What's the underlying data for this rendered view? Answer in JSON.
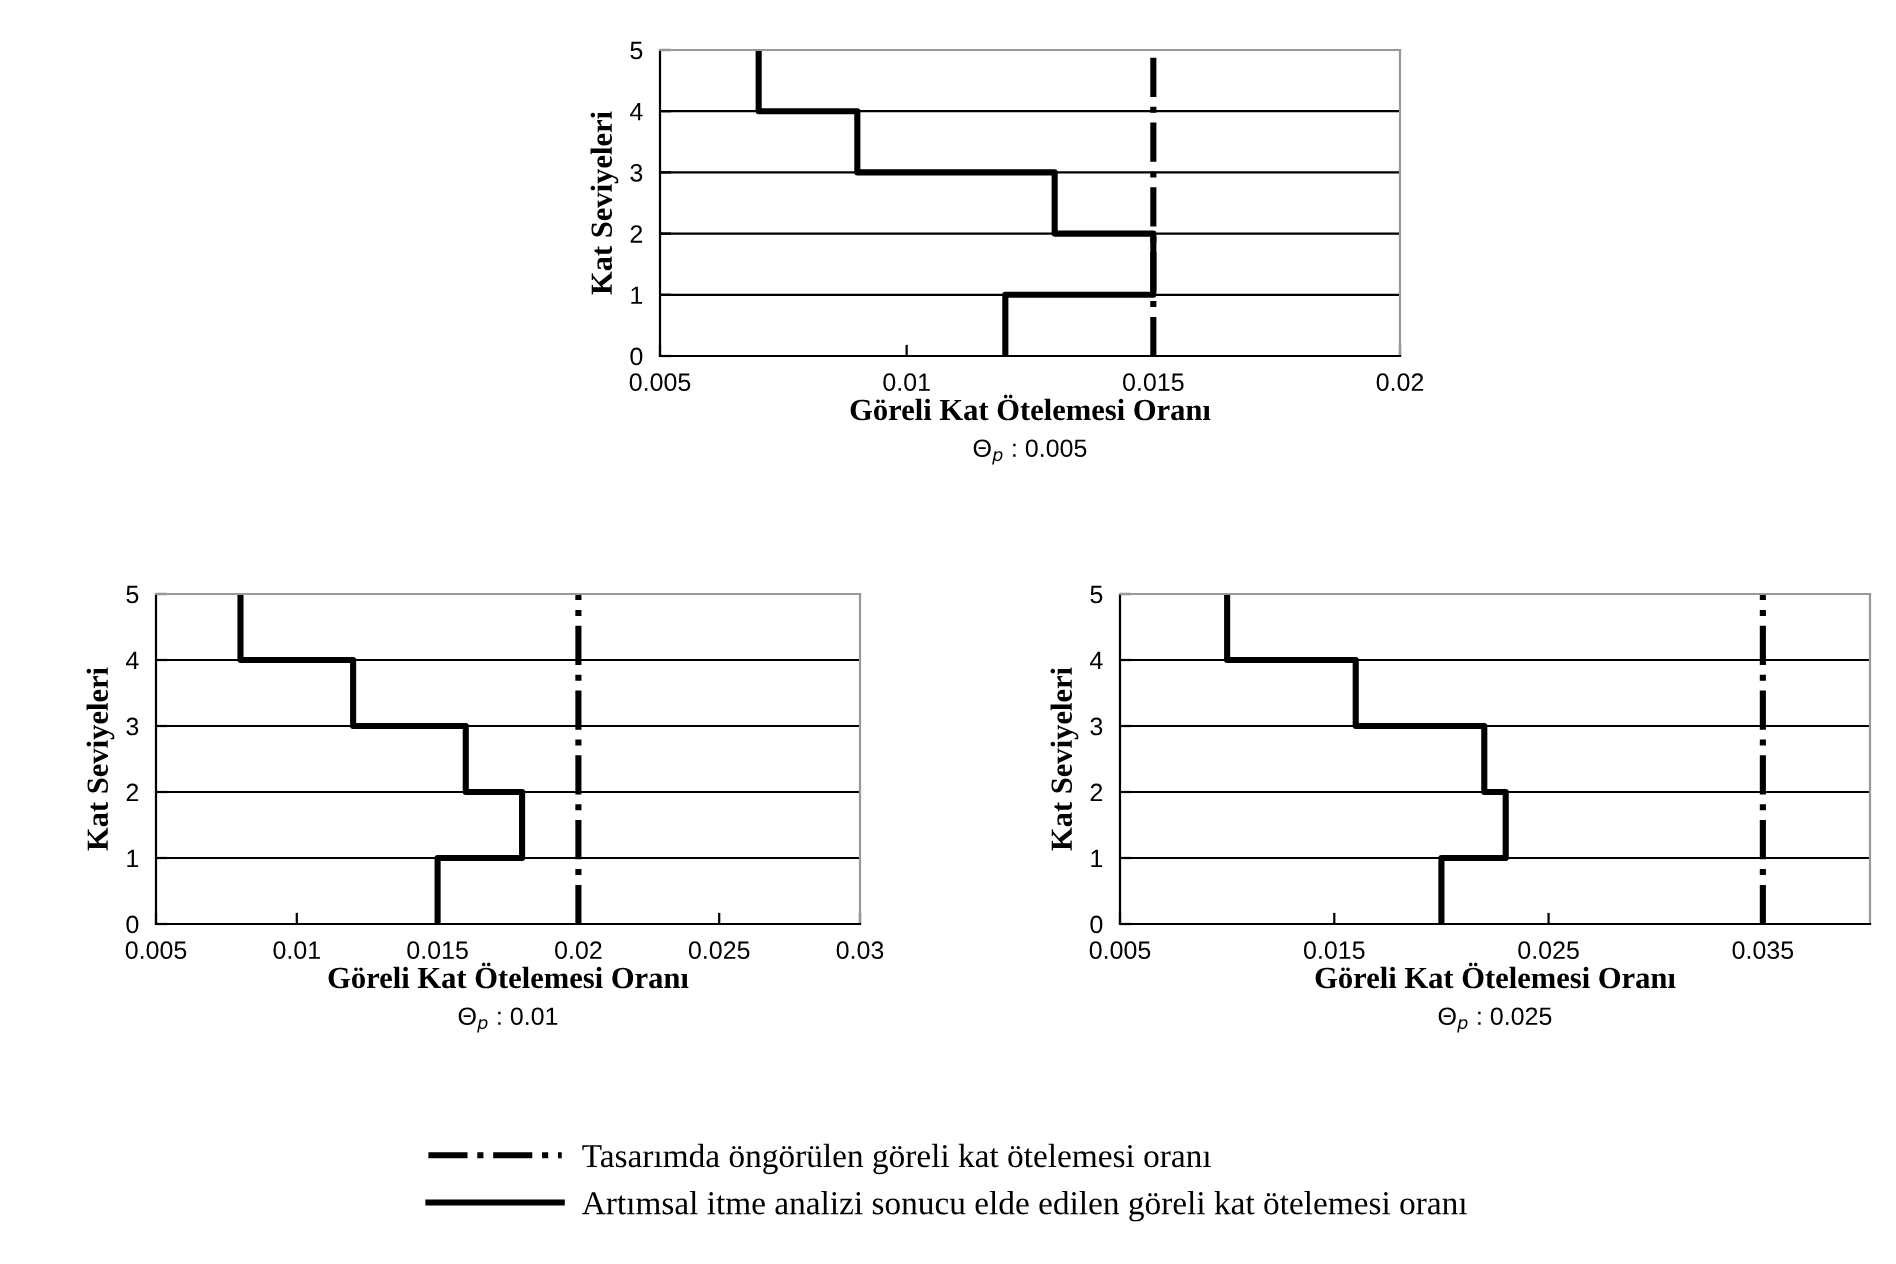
{
  "chart_data": [
    {
      "type": "line",
      "xlabel": "Göreli Kat Ötelemesi Oranı",
      "ylabel": "Kat Seviyeleri",
      "annotations": [
        "Θ$_{p}$ : 0.005"
      ],
      "series": [
        {
          "color": "#000000",
          "x": [
            0.012,
            0.012,
            0.015,
            0.015,
            0.013,
            0.013,
            0.009,
            0.009,
            0.007,
            0.007
          ],
          "values": [
            0,
            1,
            1,
            2,
            2,
            3,
            3,
            4,
            4,
            5
          ]
        }
      ],
      "ref_lines": [
        {
          "axis": "x",
          "value": 0.015,
          "color": "#000000",
          "line_style": "dashdot"
        }
      ],
      "xlim": [
        0.005,
        0.02
      ],
      "xticks": [
        0.005,
        0.01,
        0.015,
        0.02
      ],
      "ylim": [
        0,
        5
      ],
      "yticks": [
        0,
        1,
        2,
        3,
        4,
        5
      ],
      "grid": "y",
      "marker": "none",
      "line_style": "solid"
    },
    {
      "type": "line",
      "xlabel": "Göreli Kat Ötelemesi Oranı",
      "ylabel": "Kat Seviyeleri",
      "annotations": [
        "Θ$_{p}$ : 0.01"
      ],
      "series": [
        {
          "color": "#000000",
          "x": [
            0.015,
            0.015,
            0.018,
            0.018,
            0.016,
            0.016,
            0.012,
            0.012,
            0.008,
            0.008
          ],
          "values": [
            0,
            1,
            1,
            2,
            2,
            3,
            3,
            4,
            4,
            5
          ]
        }
      ],
      "ref_lines": [
        {
          "axis": "x",
          "value": 0.02,
          "color": "#000000",
          "line_style": "dashdot"
        }
      ],
      "xlim": [
        0.005,
        0.03
      ],
      "xticks": [
        0.005,
        0.01,
        0.015,
        0.02,
        0.025,
        0.03
      ],
      "ylim": [
        0,
        5
      ],
      "yticks": [
        0,
        1,
        2,
        3,
        4,
        5
      ],
      "grid": "y",
      "marker": "none",
      "line_style": "solid"
    },
    {
      "type": "line",
      "xlabel": "Göreli Kat Ötelemesi Oranı",
      "ylabel": "Kat Seviyeleri",
      "annotations": [
        "Θ$_{p}$ : 0.025"
      ],
      "series": [
        {
          "name": "Artımsal itme analizi sonucu elde edilen göreli kat ötelemesi oranı",
          "color": "#000000",
          "x": [
            0.02,
            0.02,
            0.023,
            0.023,
            0.022,
            0.022,
            0.016,
            0.016,
            0.01,
            0.01
          ],
          "values": [
            0,
            1,
            1,
            2,
            2,
            3,
            3,
            4,
            4,
            5
          ]
        }
      ],
      "ref_lines": [
        {
          "axis": "x",
          "value": 0.035,
          "label": "Tasarımda öngörülen göreli kat ötelemesi oranı",
          "color": "#000000",
          "line_style": "dashdot"
        }
      ],
      "xlim": [
        0.005,
        0.04
      ],
      "xticks": [
        0.005,
        0.015,
        0.025,
        0.035
      ],
      "ylim": [
        0,
        5
      ],
      "yticks": [
        0,
        1,
        2,
        3,
        4,
        5
      ],
      "grid": "y",
      "marker": "none",
      "line_style": "solid",
      "legend": "bottom"
    }
  ]
}
